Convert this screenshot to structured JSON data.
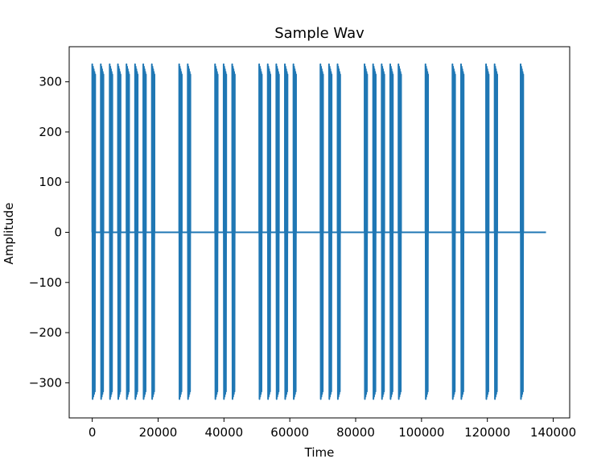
{
  "chart_data": {
    "type": "line",
    "title": "Sample Wav",
    "xlabel": "Time",
    "ylabel": "Amplitude",
    "xlim": [
      -7000,
      145000
    ],
    "ylim": [
      -370,
      370
    ],
    "x_ticks": [
      0,
      20000,
      40000,
      60000,
      80000,
      100000,
      120000,
      140000
    ],
    "y_ticks": [
      -300,
      -200,
      -100,
      0,
      100,
      200,
      300
    ],
    "grid": false,
    "line_color": "#1f77b4",
    "series": [
      {
        "x_end": 137800,
        "baseline": 0,
        "peak_amplitude": 335,
        "bursts": [
          {
            "start": 0,
            "end": 900
          },
          {
            "start": 2600,
            "end": 3400
          },
          {
            "start": 5300,
            "end": 6100
          },
          {
            "start": 7800,
            "end": 8600
          },
          {
            "start": 10400,
            "end": 11200
          },
          {
            "start": 13000,
            "end": 13800
          },
          {
            "start": 15500,
            "end": 16300
          },
          {
            "start": 18100,
            "end": 18900
          },
          {
            "start": 26400,
            "end": 27200
          },
          {
            "start": 29000,
            "end": 29800
          },
          {
            "start": 37300,
            "end": 38100
          },
          {
            "start": 39900,
            "end": 40700
          },
          {
            "start": 42500,
            "end": 43300
          },
          {
            "start": 50700,
            "end": 51500
          },
          {
            "start": 53300,
            "end": 54100
          },
          {
            "start": 55900,
            "end": 56700
          },
          {
            "start": 58500,
            "end": 59300
          },
          {
            "start": 61100,
            "end": 61900
          },
          {
            "start": 69300,
            "end": 70100
          },
          {
            "start": 71900,
            "end": 72700
          },
          {
            "start": 74500,
            "end": 75300
          },
          {
            "start": 82700,
            "end": 83500
          },
          {
            "start": 85300,
            "end": 86100
          },
          {
            "start": 87900,
            "end": 88700
          },
          {
            "start": 90500,
            "end": 91300
          },
          {
            "start": 93000,
            "end": 93800
          },
          {
            "start": 101200,
            "end": 102000
          },
          {
            "start": 109400,
            "end": 110200
          },
          {
            "start": 112000,
            "end": 112800
          },
          {
            "start": 119600,
            "end": 120400
          },
          {
            "start": 122200,
            "end": 123000
          },
          {
            "start": 130100,
            "end": 130900
          }
        ]
      }
    ]
  }
}
